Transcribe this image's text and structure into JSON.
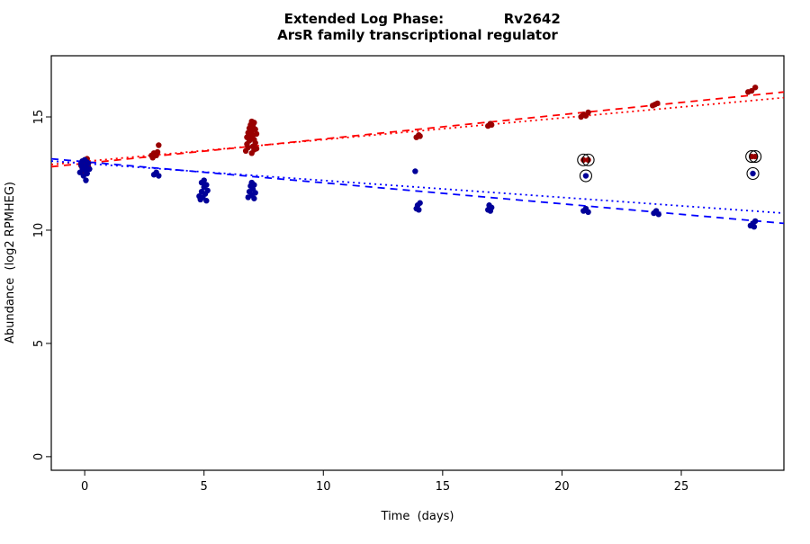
{
  "chart_data": {
    "type": "scatter",
    "title_left": "Extended Log Phase:",
    "title_right": "Rv2642",
    "subtitle": "ArsR family transcriptional regulator",
    "xlabel": "Time  (days)",
    "ylabel": "Abundance  (log2 RPMHEG)",
    "xlim": [
      -1.4,
      29.3
    ],
    "ylim": [
      -0.6,
      17.7
    ],
    "xticks": [
      0,
      5,
      10,
      15,
      20,
      25
    ],
    "yticks": [
      0,
      5,
      10,
      15
    ],
    "grid": false,
    "legend": "none",
    "colors": {
      "point_red": "#990000",
      "point_blue": "#000099",
      "line_red": "#FF0000",
      "line_blue": "#0000FF",
      "outlier_ring": "#000000",
      "axis": "#000000"
    },
    "series": [
      {
        "name": "red-condition",
        "color": "#990000",
        "points": [
          [
            -0.15,
            12.85
          ],
          [
            -0.1,
            13.0
          ],
          [
            -0.05,
            12.7
          ],
          [
            0,
            13.1
          ],
          [
            0,
            12.9
          ],
          [
            0.05,
            13.05
          ],
          [
            0.1,
            12.95
          ],
          [
            0.1,
            13.15
          ],
          [
            0.15,
            12.8
          ],
          [
            -0.1,
            12.6
          ],
          [
            2.8,
            13.3
          ],
          [
            2.85,
            13.2
          ],
          [
            2.9,
            13.4
          ],
          [
            3.0,
            13.3
          ],
          [
            3.05,
            13.45
          ],
          [
            3.1,
            13.75
          ],
          [
            6.75,
            13.5
          ],
          [
            6.8,
            13.8
          ],
          [
            6.8,
            14.1
          ],
          [
            6.85,
            13.65
          ],
          [
            6.85,
            14.3
          ],
          [
            6.9,
            13.95
          ],
          [
            6.9,
            14.5
          ],
          [
            6.95,
            14.15
          ],
          [
            6.95,
            14.65
          ],
          [
            7.0,
            13.4
          ],
          [
            7.0,
            14.4
          ],
          [
            7.0,
            14.8
          ],
          [
            7.05,
            13.7
          ],
          [
            7.05,
            14.2
          ],
          [
            7.05,
            14.6
          ],
          [
            7.1,
            13.55
          ],
          [
            7.1,
            14.0
          ],
          [
            7.1,
            14.75
          ],
          [
            7.15,
            13.85
          ],
          [
            7.15,
            14.45
          ],
          [
            7.2,
            13.6
          ],
          [
            7.2,
            14.25
          ],
          [
            13.9,
            14.1
          ],
          [
            14.0,
            14.2
          ],
          [
            14.05,
            14.15
          ],
          [
            16.9,
            14.6
          ],
          [
            17.0,
            14.7
          ],
          [
            17.05,
            14.65
          ],
          [
            20.8,
            15.0
          ],
          [
            20.9,
            15.1
          ],
          [
            21.0,
            15.05
          ],
          [
            21.1,
            15.2
          ],
          [
            20.9,
            13.1
          ],
          [
            21.1,
            13.1
          ],
          [
            23.8,
            15.5
          ],
          [
            23.9,
            15.55
          ],
          [
            24.0,
            15.6
          ],
          [
            27.8,
            16.1
          ],
          [
            27.95,
            16.15
          ],
          [
            28.1,
            16.3
          ],
          [
            27.95,
            13.25
          ],
          [
            28.1,
            13.25
          ]
        ]
      },
      {
        "name": "blue-condition",
        "color": "#000099",
        "points": [
          [
            -0.2,
            12.55
          ],
          [
            -0.15,
            12.9
          ],
          [
            -0.1,
            12.75
          ],
          [
            -0.1,
            13.05
          ],
          [
            -0.05,
            12.4
          ],
          [
            0,
            13.1
          ],
          [
            0,
            12.65
          ],
          [
            0.05,
            12.85
          ],
          [
            0.05,
            12.2
          ],
          [
            0.1,
            13.0
          ],
          [
            0.1,
            12.5
          ],
          [
            0.15,
            12.95
          ],
          [
            0.2,
            12.7
          ],
          [
            2.9,
            12.45
          ],
          [
            3.0,
            12.55
          ],
          [
            3.1,
            12.4
          ],
          [
            4.8,
            11.5
          ],
          [
            4.85,
            11.35
          ],
          [
            4.9,
            11.7
          ],
          [
            4.9,
            12.1
          ],
          [
            4.95,
            11.45
          ],
          [
            5.0,
            11.9
          ],
          [
            5.0,
            12.2
          ],
          [
            5.05,
            11.6
          ],
          [
            5.1,
            12.0
          ],
          [
            5.1,
            11.3
          ],
          [
            5.15,
            11.75
          ],
          [
            6.85,
            11.45
          ],
          [
            6.9,
            11.7
          ],
          [
            6.95,
            11.95
          ],
          [
            7.0,
            11.55
          ],
          [
            7.0,
            12.1
          ],
          [
            7.05,
            11.8
          ],
          [
            7.1,
            12.0
          ],
          [
            7.1,
            11.4
          ],
          [
            7.15,
            11.65
          ],
          [
            13.85,
            12.6
          ],
          [
            13.9,
            10.95
          ],
          [
            13.95,
            11.1
          ],
          [
            14.0,
            10.9
          ],
          [
            14.05,
            11.2
          ],
          [
            16.9,
            10.9
          ],
          [
            16.95,
            11.1
          ],
          [
            17.0,
            10.85
          ],
          [
            17.05,
            11.0
          ],
          [
            20.9,
            10.85
          ],
          [
            21.0,
            10.95
          ],
          [
            21.1,
            10.8
          ],
          [
            21.0,
            12.4
          ],
          [
            23.85,
            10.75
          ],
          [
            23.95,
            10.85
          ],
          [
            24.05,
            10.7
          ],
          [
            27.9,
            10.2
          ],
          [
            28.0,
            10.3
          ],
          [
            28.05,
            10.15
          ],
          [
            28.1,
            10.4
          ],
          [
            28.0,
            12.5
          ]
        ]
      }
    ],
    "outlier_circles": [
      [
        20.9,
        13.1
      ],
      [
        21.1,
        13.1
      ],
      [
        21.0,
        12.4
      ],
      [
        27.95,
        13.25
      ],
      [
        28.1,
        13.25
      ],
      [
        28.0,
        12.5
      ]
    ],
    "trendlines": [
      {
        "name": "red-fit-dashed",
        "color": "#FF0000",
        "dash": "8,6",
        "x1": -1.4,
        "y1": 12.8,
        "x2": 29.3,
        "y2": 16.1
      },
      {
        "name": "red-fit-dotted",
        "color": "#FF0000",
        "dash": "2,4",
        "x1": -1.4,
        "y1": 12.9,
        "x2": 29.3,
        "y2": 15.85
      },
      {
        "name": "blue-fit-dashed",
        "color": "#0000FF",
        "dash": "8,6",
        "x1": -1.4,
        "y1": 13.15,
        "x2": 29.3,
        "y2": 10.3
      },
      {
        "name": "blue-fit-dotted",
        "color": "#0000FF",
        "dash": "2,4",
        "x1": -1.4,
        "y1": 13.05,
        "x2": 29.3,
        "y2": 10.75
      }
    ]
  }
}
